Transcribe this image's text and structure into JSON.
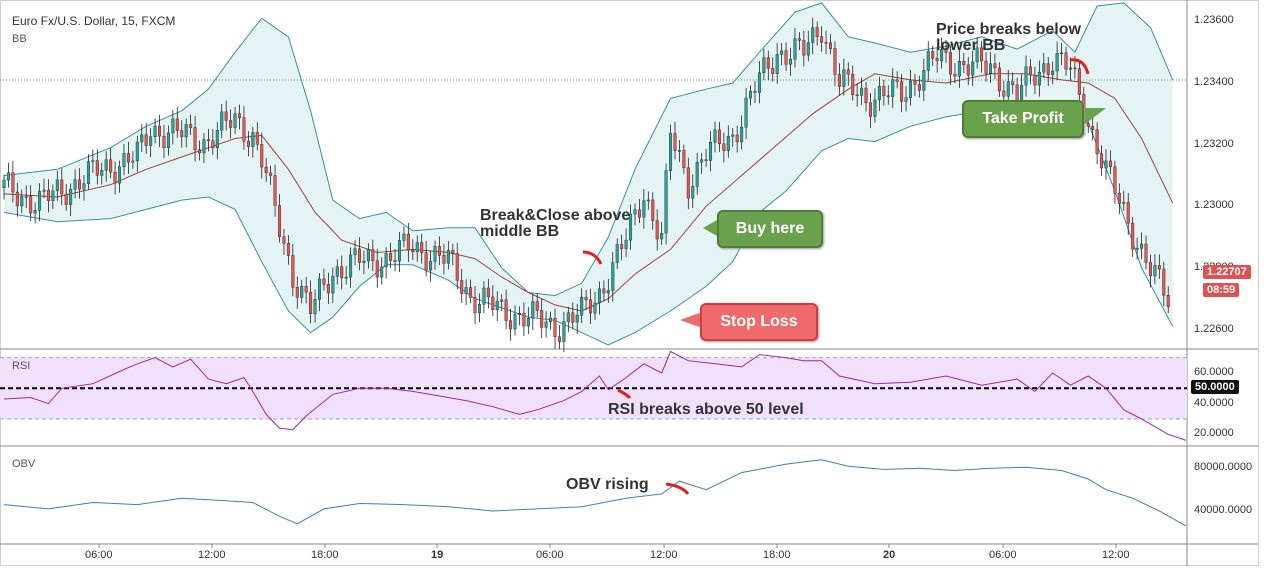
{
  "header": {
    "symbol": "Euro Fx/U.S. Dollar, 15, FXCM",
    "indicator": "BB"
  },
  "panels": {
    "rsi_label": "RSI",
    "obv_label": "OBV"
  },
  "annotations": {
    "break_close": "Break&Close above middle BB",
    "buy": "Buy here",
    "stop": "Stop Loss",
    "price_breaks": "Price breaks below lower BB",
    "take_profit": "Take Profit",
    "rsi_breaks": "RSI breaks above 50 level",
    "obv_rising": "OBV rising"
  },
  "badges": {
    "price": "1.22707",
    "timer": "08:59",
    "rsi_level": "50.0000"
  },
  "colors": {
    "candle_up": "#26a69a",
    "candle_down": "#ef5350",
    "bb": "#3a8fa8",
    "bb_mid": "#a04040",
    "rsi_line": "#9c27b0",
    "rsi_band": "#f1e0fc",
    "obv_line": "#3f7fbf",
    "green_callout": "#6aa14c",
    "red_callout": "#ef6b6b",
    "price_badge": "#e05151"
  },
  "chart_data": [
    {
      "type": "candlestick",
      "title": "Euro Fx/U.S. Dollar, 15, FXCM",
      "xlabel": "",
      "ylabel": "",
      "x_ticks": [
        "06:00",
        "12:00",
        "18:00",
        "19",
        "06:00",
        "12:00",
        "18:00",
        "20",
        "06:00",
        "12:00"
      ],
      "y_ticks": [
        "1.23600",
        "1.23400",
        "1.23200",
        "1.23000",
        "1.22800",
        "1.22600"
      ],
      "ylim": [
        1.2254,
        1.2365
      ],
      "reference_line": 1.2341,
      "close_path": [
        [
          0,
          1.2306
        ],
        [
          8,
          1.2301
        ],
        [
          14,
          1.2306
        ],
        [
          22,
          1.2312
        ],
        [
          30,
          1.2316
        ],
        [
          33,
          1.2325
        ],
        [
          38,
          1.2324
        ],
        [
          45,
          1.2321
        ],
        [
          52,
          1.2328
        ],
        [
          56,
          1.2323
        ],
        [
          58,
          1.2315
        ],
        [
          62,
          1.2293
        ],
        [
          65,
          1.2278
        ],
        [
          69,
          1.2266
        ],
        [
          74,
          1.2279
        ],
        [
          80,
          1.2282
        ],
        [
          86,
          1.2283
        ],
        [
          92,
          1.2287
        ],
        [
          100,
          1.2282
        ],
        [
          105,
          1.2271
        ],
        [
          112,
          1.2266
        ],
        [
          118,
          1.2264
        ],
        [
          124,
          1.2261
        ],
        [
          130,
          1.2265
        ],
        [
          134,
          1.2272
        ],
        [
          140,
          1.2289
        ],
        [
          144,
          1.2305
        ],
        [
          148,
          1.2289
        ],
        [
          150,
          1.2323
        ],
        [
          154,
          1.2308
        ],
        [
          158,
          1.2317
        ],
        [
          164,
          1.2323
        ],
        [
          170,
          1.2341
        ],
        [
          174,
          1.235
        ],
        [
          180,
          1.235
        ],
        [
          184,
          1.2359
        ],
        [
          188,
          1.234
        ],
        [
          195,
          1.2335
        ],
        [
          202,
          1.2337
        ],
        [
          210,
          1.2348
        ],
        [
          216,
          1.2346
        ],
        [
          222,
          1.2345
        ],
        [
          228,
          1.2336
        ],
        [
          232,
          1.2343
        ],
        [
          236,
          1.2348
        ],
        [
          240,
          1.2344
        ],
        [
          244,
          1.2328
        ],
        [
          248,
          1.2311
        ],
        [
          254,
          1.2292
        ],
        [
          258,
          1.2279
        ],
        [
          262,
          1.227
        ]
      ],
      "bb_upper": [
        [
          0,
          1.231
        ],
        [
          12,
          1.2312
        ],
        [
          24,
          1.2319
        ],
        [
          32,
          1.2326
        ],
        [
          40,
          1.2331
        ],
        [
          46,
          1.2338
        ],
        [
          52,
          1.235
        ],
        [
          58,
          1.2361
        ],
        [
          64,
          1.2355
        ],
        [
          69,
          1.2331
        ],
        [
          74,
          1.2302
        ],
        [
          80,
          1.2296
        ],
        [
          86,
          1.2298
        ],
        [
          92,
          1.2292
        ],
        [
          100,
          1.2293
        ],
        [
          106,
          1.2293
        ],
        [
          112,
          1.228
        ],
        [
          118,
          1.2272
        ],
        [
          124,
          1.2271
        ],
        [
          130,
          1.2275
        ],
        [
          136,
          1.229
        ],
        [
          142,
          1.2312
        ],
        [
          150,
          1.2335
        ],
        [
          158,
          1.2338
        ],
        [
          164,
          1.234
        ],
        [
          170,
          1.235
        ],
        [
          178,
          1.2363
        ],
        [
          184,
          1.2366
        ],
        [
          190,
          1.2355
        ],
        [
          196,
          1.2353
        ],
        [
          204,
          1.235
        ],
        [
          212,
          1.2352
        ],
        [
          220,
          1.2355
        ],
        [
          228,
          1.2351
        ],
        [
          236,
          1.2357
        ],
        [
          241,
          1.235
        ],
        [
          246,
          1.2365
        ],
        [
          252,
          1.2366
        ],
        [
          258,
          1.2358
        ],
        [
          263,
          1.2341
        ]
      ],
      "bb_middle": [
        [
          0,
          1.2304
        ],
        [
          12,
          1.2303
        ],
        [
          24,
          1.2307
        ],
        [
          32,
          1.2312
        ],
        [
          40,
          1.2316
        ],
        [
          46,
          1.2319
        ],
        [
          52,
          1.2322
        ],
        [
          58,
          1.2323
        ],
        [
          64,
          1.2312
        ],
        [
          70,
          1.2298
        ],
        [
          76,
          1.2289
        ],
        [
          84,
          1.2285
        ],
        [
          92,
          1.2286
        ],
        [
          100,
          1.2285
        ],
        [
          106,
          1.2283
        ],
        [
          112,
          1.2277
        ],
        [
          118,
          1.2272
        ],
        [
          124,
          1.2268
        ],
        [
          130,
          1.2266
        ],
        [
          136,
          1.227
        ],
        [
          142,
          1.2278
        ],
        [
          150,
          1.2286
        ],
        [
          158,
          1.23
        ],
        [
          166,
          1.231
        ],
        [
          174,
          1.232
        ],
        [
          182,
          1.233
        ],
        [
          190,
          1.2338
        ],
        [
          196,
          1.2343
        ],
        [
          204,
          1.2341
        ],
        [
          212,
          1.234
        ],
        [
          222,
          1.2343
        ],
        [
          230,
          1.2343
        ],
        [
          238,
          1.2341
        ],
        [
          244,
          1.234
        ],
        [
          250,
          1.2335
        ],
        [
          256,
          1.2322
        ],
        [
          263,
          1.2301
        ]
      ],
      "bb_lower": [
        [
          0,
          1.2298
        ],
        [
          12,
          1.2295
        ],
        [
          24,
          1.2296
        ],
        [
          32,
          1.2299
        ],
        [
          40,
          1.2302
        ],
        [
          46,
          1.2303
        ],
        [
          52,
          1.2299
        ],
        [
          58,
          1.2282
        ],
        [
          64,
          1.2266
        ],
        [
          69,
          1.2259
        ],
        [
          74,
          1.2264
        ],
        [
          80,
          1.2274
        ],
        [
          86,
          1.2281
        ],
        [
          92,
          1.2281
        ],
        [
          100,
          1.2276
        ],
        [
          106,
          1.227
        ],
        [
          112,
          1.2267
        ],
        [
          118,
          1.2264
        ],
        [
          124,
          1.2263
        ],
        [
          130,
          1.2259
        ],
        [
          136,
          1.2255
        ],
        [
          142,
          1.2259
        ],
        [
          150,
          1.2266
        ],
        [
          158,
          1.2274
        ],
        [
          164,
          1.2282
        ],
        [
          170,
          1.2298
        ],
        [
          176,
          1.2305
        ],
        [
          184,
          1.2318
        ],
        [
          190,
          1.2322
        ],
        [
          196,
          1.2321
        ],
        [
          204,
          1.2326
        ],
        [
          212,
          1.2329
        ],
        [
          220,
          1.2331
        ],
        [
          228,
          1.2331
        ],
        [
          236,
          1.233
        ],
        [
          244,
          1.2327
        ],
        [
          250,
          1.2305
        ],
        [
          256,
          1.228
        ],
        [
          263,
          1.2261
        ]
      ]
    },
    {
      "type": "line",
      "title": "RSI",
      "y_ticks": [
        "60.0000",
        "40.0000",
        "20.0000"
      ],
      "ylim": [
        13,
        75
      ],
      "band": [
        30,
        70
      ],
      "level": 50,
      "series": [
        {
          "values": [
            [
              0,
              43
            ],
            [
              6,
              44
            ],
            [
              10,
              40
            ],
            [
              13,
              50
            ],
            [
              20,
              53
            ],
            [
              26,
              61
            ],
            [
              30,
              66
            ],
            [
              34,
              70
            ],
            [
              38,
              64
            ],
            [
              42,
              69
            ],
            [
              46,
              56
            ],
            [
              50,
              53
            ],
            [
              54,
              57
            ],
            [
              56,
              48
            ],
            [
              59,
              33
            ],
            [
              62,
              24
            ],
            [
              65,
              23
            ],
            [
              68,
              32
            ],
            [
              74,
              46
            ],
            [
              80,
              50
            ],
            [
              86,
              50
            ],
            [
              92,
              48
            ],
            [
              98,
              45
            ],
            [
              104,
              42
            ],
            [
              110,
              38
            ],
            [
              116,
              33
            ],
            [
              120,
              36
            ],
            [
              126,
              42
            ],
            [
              130,
              48
            ],
            [
              134,
              58
            ],
            [
              136,
              49
            ],
            [
              140,
              57
            ],
            [
              144,
              66
            ],
            [
              148,
              60
            ],
            [
              150,
              74
            ],
            [
              154,
              68
            ],
            [
              160,
              66
            ],
            [
              166,
              64
            ],
            [
              170,
              72
            ],
            [
              176,
              70
            ],
            [
              180,
              68
            ],
            [
              184,
              68
            ],
            [
              188,
              58
            ],
            [
              196,
              53
            ],
            [
              204,
              54
            ],
            [
              212,
              58
            ],
            [
              220,
              52
            ],
            [
              228,
              56
            ],
            [
              232,
              48
            ],
            [
              236,
              60
            ],
            [
              240,
              52
            ],
            [
              244,
              58
            ],
            [
              248,
              50
            ],
            [
              252,
              36
            ],
            [
              256,
              30
            ],
            [
              262,
              20
            ],
            [
              266,
              16
            ]
          ]
        }
      ]
    },
    {
      "type": "line",
      "title": "OBV",
      "y_ticks": [
        "80000.0000",
        "40000.0000"
      ],
      "ylim": [
        10000,
        100000
      ],
      "series": [
        {
          "values": [
            [
              0,
              46000
            ],
            [
              10,
              42000
            ],
            [
              20,
              48000
            ],
            [
              30,
              46000
            ],
            [
              40,
              52000
            ],
            [
              48,
              50000
            ],
            [
              56,
              48000
            ],
            [
              62,
              35000
            ],
            [
              66,
              28000
            ],
            [
              72,
              42000
            ],
            [
              80,
              47000
            ],
            [
              90,
              46000
            ],
            [
              100,
              44000
            ],
            [
              110,
              40000
            ],
            [
              120,
              42000
            ],
            [
              130,
              44000
            ],
            [
              140,
              52000
            ],
            [
              148,
              56000
            ],
            [
              152,
              68000
            ],
            [
              158,
              60000
            ],
            [
              166,
              76000
            ],
            [
              176,
              84000
            ],
            [
              184,
              88000
            ],
            [
              190,
              82000
            ],
            [
              198,
              79000
            ],
            [
              206,
              80000
            ],
            [
              214,
              78000
            ],
            [
              222,
              80000
            ],
            [
              230,
              81000
            ],
            [
              238,
              78000
            ],
            [
              244,
              70000
            ],
            [
              248,
              60000
            ],
            [
              254,
              52000
            ],
            [
              260,
              40000
            ],
            [
              266,
              26000
            ]
          ]
        }
      ]
    }
  ]
}
